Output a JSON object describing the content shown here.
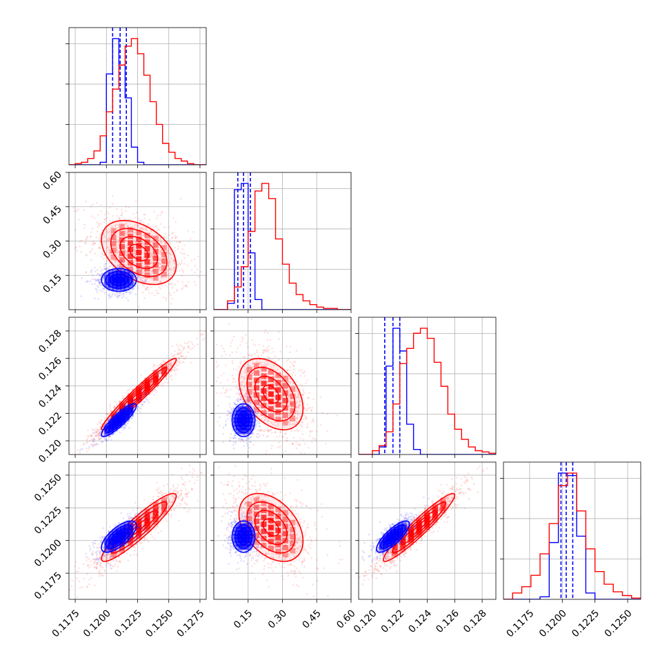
{
  "chart_data": {
    "type": "corner",
    "grid": true,
    "series": [
      {
        "name": "",
        "color": "#0000ff",
        "mean": [
          0.121,
          0.13,
          0.1215,
          0.1203
        ],
        "sd": [
          0.0007,
          0.025,
          0.0006,
          0.0006
        ],
        "corr": [
          [
            1,
            0,
            0.88,
            0.7
          ],
          [
            0,
            1,
            0,
            0
          ],
          [
            0.88,
            0,
            1,
            0.8
          ],
          [
            0.7,
            0,
            0.8,
            1
          ]
        ],
        "quantiles": [
          [
            0.1205,
            0.1211,
            0.1216
          ],
          [
            0.105,
            0.13,
            0.16
          ],
          [
            0.1209,
            0.1215,
            0.122
          ],
          [
            0.1199,
            0.1203,
            0.1208
          ]
        ],
        "histograms": [
          {
            "edges": [
              0.117,
              0.1175,
              0.118,
              0.1185,
              0.119,
              0.1195,
              0.12,
              0.1205,
              0.121,
              0.1215,
              0.122,
              0.1225,
              0.123,
              0.1235,
              0.124,
              0.1245,
              0.125,
              0.1255,
              0.126,
              0.1265,
              0.127,
              0.1275,
              0.128
            ],
            "counts": [
              0,
              0,
              0,
              0,
              0,
              2,
              72,
              100,
              79,
              53,
              14,
              2,
              0,
              0,
              0,
              0,
              0,
              0,
              0,
              0,
              0,
              0
            ]
          },
          {
            "edges": [
              0.0,
              0.03,
              0.06,
              0.09,
              0.12,
              0.15,
              0.18,
              0.21,
              0.24,
              0.27,
              0.3,
              0.33,
              0.36,
              0.39,
              0.42,
              0.45,
              0.48,
              0.51,
              0.54,
              0.57,
              0.6
            ],
            "counts": [
              0,
              0,
              5,
              95,
              100,
              45,
              8,
              0,
              0,
              0,
              0,
              0,
              0,
              0,
              0,
              0,
              0,
              0,
              0,
              0
            ]
          },
          {
            "edges": [
              0.119,
              0.1195,
              0.12,
              0.1205,
              0.121,
              0.1215,
              0.122,
              0.1225,
              0.123,
              0.1235,
              0.124,
              0.1245,
              0.125,
              0.1255,
              0.126,
              0.1265,
              0.127,
              0.1275,
              0.128,
              0.1285,
              0.129
            ],
            "counts": [
              0,
              0,
              0,
              6,
              70,
              100,
              82,
              24,
              4,
              0,
              0,
              0,
              0,
              0,
              0,
              0,
              0,
              0,
              0,
              0
            ]
          },
          {
            "edges": [
              0.1155,
              0.1162,
              0.1169,
              0.1176,
              0.1183,
              0.119,
              0.1197,
              0.1204,
              0.1211,
              0.1218,
              0.1225,
              0.1232,
              0.1239,
              0.1246,
              0.1253,
              0.126
            ],
            "counts": [
              0,
              0,
              0,
              0,
              2,
              45,
              100,
              98,
              50,
              5,
              0,
              0,
              0,
              0,
              0
            ]
          }
        ]
      },
      {
        "name": "",
        "color": "#ff0000",
        "mean": [
          0.1226,
          0.25,
          0.1234,
          0.121
        ],
        "sd": [
          0.0015,
          0.07,
          0.0013,
          0.0013
        ],
        "corr": [
          [
            1,
            -0.4,
            0.97,
            0.92
          ],
          [
            -0.4,
            1,
            -0.4,
            -0.4
          ],
          [
            0.97,
            -0.4,
            1,
            0.95
          ],
          [
            0.92,
            -0.4,
            0.95,
            1
          ]
        ],
        "quantiles": [],
        "histograms": [
          {
            "edges": [
              0.117,
              0.1175,
              0.118,
              0.1185,
              0.119,
              0.1195,
              0.12,
              0.1205,
              0.121,
              0.1215,
              0.122,
              0.1225,
              0.123,
              0.1235,
              0.124,
              0.1245,
              0.125,
              0.1255,
              0.126,
              0.1265,
              0.127,
              0.1275,
              0.128
            ],
            "counts": [
              0,
              1,
              2,
              5,
              11,
              23,
              42,
              60,
              79,
              94,
              100,
              88,
              71,
              50,
              32,
              17,
              10,
              5,
              3,
              1,
              0,
              0
            ]
          },
          {
            "edges": [
              0.0,
              0.03,
              0.06,
              0.09,
              0.12,
              0.15,
              0.18,
              0.21,
              0.24,
              0.27,
              0.3,
              0.33,
              0.36,
              0.39,
              0.42,
              0.45,
              0.48,
              0.51,
              0.54,
              0.57,
              0.6
            ],
            "counts": [
              0,
              0,
              7,
              18,
              34,
              62,
              94,
              100,
              88,
              56,
              36,
              21,
              12,
              7,
              4,
              2,
              1,
              1,
              0,
              0
            ]
          },
          {
            "edges": [
              0.119,
              0.1195,
              0.12,
              0.1205,
              0.121,
              0.1215,
              0.122,
              0.1225,
              0.123,
              0.1235,
              0.124,
              0.1245,
              0.125,
              0.1255,
              0.126,
              0.1265,
              0.127,
              0.1275,
              0.128,
              0.1285,
              0.129
            ],
            "counts": [
              0,
              0,
              3,
              7,
              18,
              40,
              72,
              84,
              96,
              100,
              92,
              73,
              54,
              32,
              20,
              12,
              6,
              3,
              2,
              1
            ]
          },
          {
            "edges": [
              0.1155,
              0.1162,
              0.1169,
              0.1176,
              0.1183,
              0.119,
              0.1197,
              0.1204,
              0.1211,
              0.1218,
              0.1225,
              0.1232,
              0.1239,
              0.1246,
              0.1253,
              0.126
            ],
            "counts": [
              0,
              5,
              10,
              19,
              36,
              60,
              90,
              100,
              70,
              40,
              22,
              12,
              6,
              3,
              1
            ]
          }
        ]
      }
    ],
    "panels": {
      "ranges": [
        [
          0.117,
          0.128
        ],
        [
          0.0,
          0.6
        ],
        [
          0.119,
          0.129
        ],
        [
          0.1155,
          0.126
        ]
      ],
      "ticks": [
        [
          "0.1175",
          "0.1200",
          "0.1225",
          "0.1250",
          "0.1275"
        ],
        [
          "0.15",
          "0.30",
          "0.45",
          "0.60"
        ],
        [
          "0.120",
          "0.122",
          "0.124",
          "0.126",
          "0.128"
        ],
        [
          "0.1175",
          "0.1200",
          "0.1225",
          "0.1250"
        ]
      ]
    }
  }
}
